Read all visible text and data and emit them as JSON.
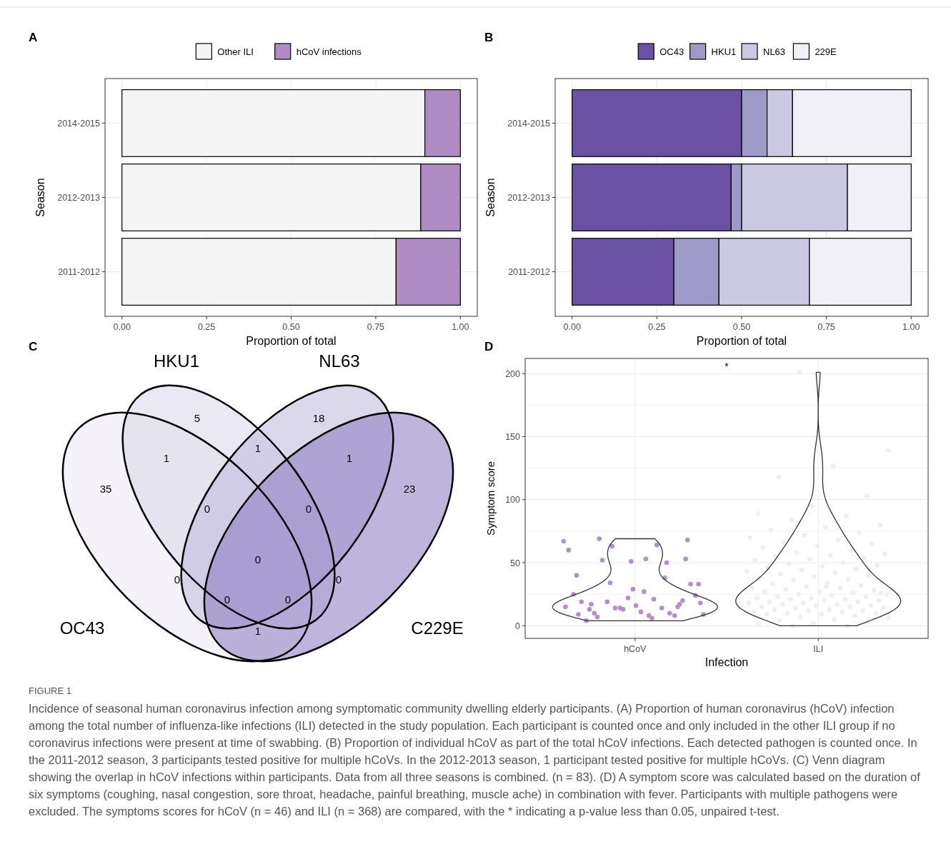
{
  "chart_data": [
    {
      "type": "bar",
      "title": "A",
      "orientation": "horizontal",
      "stacked": true,
      "categories": [
        "2014-2015",
        "2012-2013",
        "2011-2012"
      ],
      "series": [
        {
          "name": "Other ILI",
          "color": "#f5f5f5",
          "values": [
            0.895,
            0.883,
            0.81
          ]
        },
        {
          "name": "hCoV infections",
          "color": "#b08cc4",
          "values": [
            0.105,
            0.117,
            0.19
          ]
        }
      ],
      "xlim": [
        -0.05,
        1.05
      ],
      "xticks": [
        {
          "value": 0,
          "label": "0.00"
        },
        {
          "value": 0.25,
          "label": "0.25"
        },
        {
          "value": 0.5,
          "label": "0.50"
        },
        {
          "value": 0.75,
          "label": "0.75"
        },
        {
          "value": 1,
          "label": "1.00"
        }
      ],
      "xlabel": "Proportion of total",
      "ylabel": "Season",
      "grid": true,
      "legend": "top"
    },
    {
      "type": "bar",
      "title": "B",
      "orientation": "horizontal",
      "stacked": true,
      "categories": [
        "2014-2015",
        "2012-2013",
        "2011-2012"
      ],
      "series": [
        {
          "name": "OC43",
          "color": "#6a51a3",
          "values": [
            0.5,
            0.469,
            0.3
          ]
        },
        {
          "name": "HKU1",
          "color": "#9e9ac8",
          "values": [
            0.075,
            0.031,
            0.133
          ]
        },
        {
          "name": "NL63",
          "color": "#cbc9e2",
          "values": [
            0.075,
            0.312,
            0.267
          ]
        },
        {
          "name": "229E",
          "color": "#f2f0f7",
          "values": [
            0.35,
            0.188,
            0.3
          ]
        }
      ],
      "xlim": [
        -0.05,
        1.05
      ],
      "xticks": [
        {
          "value": 0,
          "label": "0.00"
        },
        {
          "value": 0.25,
          "label": "0.25"
        },
        {
          "value": 0.5,
          "label": "0.50"
        },
        {
          "value": 0.75,
          "label": "0.75"
        },
        {
          "value": 1,
          "label": "1.00"
        }
      ],
      "xlabel": "Proportion of total",
      "ylabel": "Season",
      "grid": true,
      "legend": "top"
    },
    {
      "type": "other",
      "title": "C",
      "annotations": [
        "OC43",
        "HKU1",
        "NL63",
        "C229E",
        "35",
        "5",
        "18",
        "23",
        "1",
        "1",
        "1",
        "1",
        "0",
        "0",
        "0",
        "0",
        "0",
        "0",
        "0"
      ]
    },
    {
      "type": "scatter",
      "title": "D",
      "categories": [
        "hCoV",
        "ILI"
      ],
      "series": [
        {
          "color": "#b48fc9",
          "x": [
            "hCoV",
            "hCoV",
            "hCoV",
            "hCoV",
            "hCoV",
            "hCoV",
            "hCoV",
            "hCoV",
            "hCoV",
            "hCoV",
            "hCoV",
            "hCoV",
            "hCoV",
            "hCoV",
            "hCoV",
            "hCoV",
            "hCoV",
            "hCoV",
            "hCoV",
            "hCoV",
            "hCoV",
            "hCoV",
            "hCoV",
            "hCoV",
            "hCoV",
            "hCoV",
            "hCoV",
            "hCoV",
            "hCoV",
            "hCoV",
            "hCoV",
            "hCoV",
            "hCoV",
            "hCoV",
            "hCoV",
            "hCoV",
            "hCoV",
            "hCoV",
            "hCoV",
            "hCoV",
            "hCoV",
            "hCoV",
            "hCoV",
            "hCoV",
            "hCoV",
            "hCoV"
          ],
          "values": [
            67,
            6,
            7,
            53,
            51,
            40,
            38,
            34,
            33,
            27,
            13,
            15,
            13,
            60,
            64,
            52,
            33,
            16,
            19,
            10,
            14,
            9,
            8,
            10,
            20,
            22,
            25,
            14,
            19,
            24,
            11,
            4,
            8,
            14,
            15,
            21,
            69,
            68,
            29,
            9,
            50,
            63,
            18,
            53,
            17,
            17
          ]
        },
        {
          "color": "#efefef",
          "x": [
            "ILI",
            "ILI",
            "ILI",
            "ILI",
            "ILI",
            "ILI",
            "ILI",
            "ILI",
            "ILI",
            "ILI",
            "ILI",
            "ILI",
            "ILI",
            "ILI",
            "ILI",
            "ILI",
            "ILI",
            "ILI",
            "ILI",
            "ILI",
            "ILI",
            "ILI",
            "ILI",
            "ILI",
            "ILI",
            "ILI",
            "ILI",
            "ILI",
            "ILI",
            "ILI",
            "ILI",
            "ILI",
            "ILI",
            "ILI",
            "ILI",
            "ILI",
            "ILI",
            "ILI",
            "ILI",
            "ILI",
            "ILI",
            "ILI",
            "ILI",
            "ILI",
            "ILI",
            "ILI",
            "ILI",
            "ILI",
            "ILI",
            "ILI",
            "ILI",
            "ILI",
            "ILI",
            "ILI",
            "ILI",
            "ILI",
            "ILI",
            "ILI",
            "ILI",
            "ILI",
            "ILI",
            "ILI",
            "ILI",
            "ILI",
            "ILI",
            "ILI",
            "ILI",
            "ILI",
            "ILI",
            "ILI",
            "ILI",
            "ILI",
            "ILI",
            "ILI",
            "ILI",
            "ILI",
            "ILI",
            "ILI",
            "ILI",
            "ILI",
            "ILI",
            "ILI",
            "ILI",
            "ILI",
            "ILI",
            "ILI",
            "ILI",
            "ILI",
            "ILI",
            "ILI",
            "ILI",
            "ILI",
            "ILI",
            "ILI",
            "ILI",
            "ILI",
            "ILI",
            "ILI",
            "ILI",
            "ILI"
          ],
          "values": [
            201,
            139,
            127,
            118,
            103,
            95,
            89,
            87,
            84,
            80,
            78,
            76,
            74,
            72,
            70,
            68,
            66,
            65,
            63,
            62,
            60,
            58,
            57,
            56,
            55,
            54,
            53,
            52,
            50,
            49,
            48,
            47,
            46,
            45,
            44,
            43,
            42,
            41,
            40,
            39,
            38,
            37,
            36,
            35,
            34,
            33,
            32,
            31,
            30,
            30,
            29,
            28,
            27,
            27,
            26,
            25,
            25,
            24,
            23,
            23,
            22,
            22,
            21,
            21,
            20,
            20,
            19,
            19,
            18,
            18,
            17,
            17,
            16,
            16,
            15,
            15,
            14,
            14,
            13,
            13,
            12,
            12,
            11,
            11,
            10,
            10,
            9,
            9,
            8,
            7,
            6,
            5,
            4,
            3,
            2,
            1,
            0,
            0,
            26,
            31
          ]
        }
      ],
      "ylim": [
        -10,
        212
      ],
      "yticks": [
        0,
        50,
        100,
        150,
        200
      ],
      "xlabel": "Infection",
      "ylabel": "Symptom score",
      "grid": true,
      "marker": "circle",
      "annotations": [
        "*"
      ]
    },
    {
      "type": "other",
      "title": "FIGURE 1",
      "annotations": [
        "Incidence of seasonal human coronavirus infection among symptomatic community dwelling elderly participants. (A) Proportion of human coronavirus (hCoV) infection among the total number of influenza-like infections (ILI) detected in the study population. Each participant is counted once and only included in the other ILI group if no coronavirus infections were present at time of swabbing. (B) Proportion of individual hCoV as part of the total hCoV infections. Each detected pathogen is counted once. In the 2011-2012 season, 3 participants tested positive for multiple hCoVs. In the 2012-2013 season, 1 participant tested positive for multiple hCoVs. (C) Venn diagram showing the overlap in hCoV infections within participants. Data from all three seasons is combined. (n = 83). (D) A symptom score was calculated based on the duration of six symptoms (coughing, nasal congestion, sore throat, headache, painful breathing, muscle ache) in combination with fever. Participants with multiple pathogens were excluded. The symptoms scores for hCoV (n = 46) and ILI (n = 368) are compared, with the * indicating a p-value less than 0.05, unpaired t-test."
      ]
    }
  ]
}
